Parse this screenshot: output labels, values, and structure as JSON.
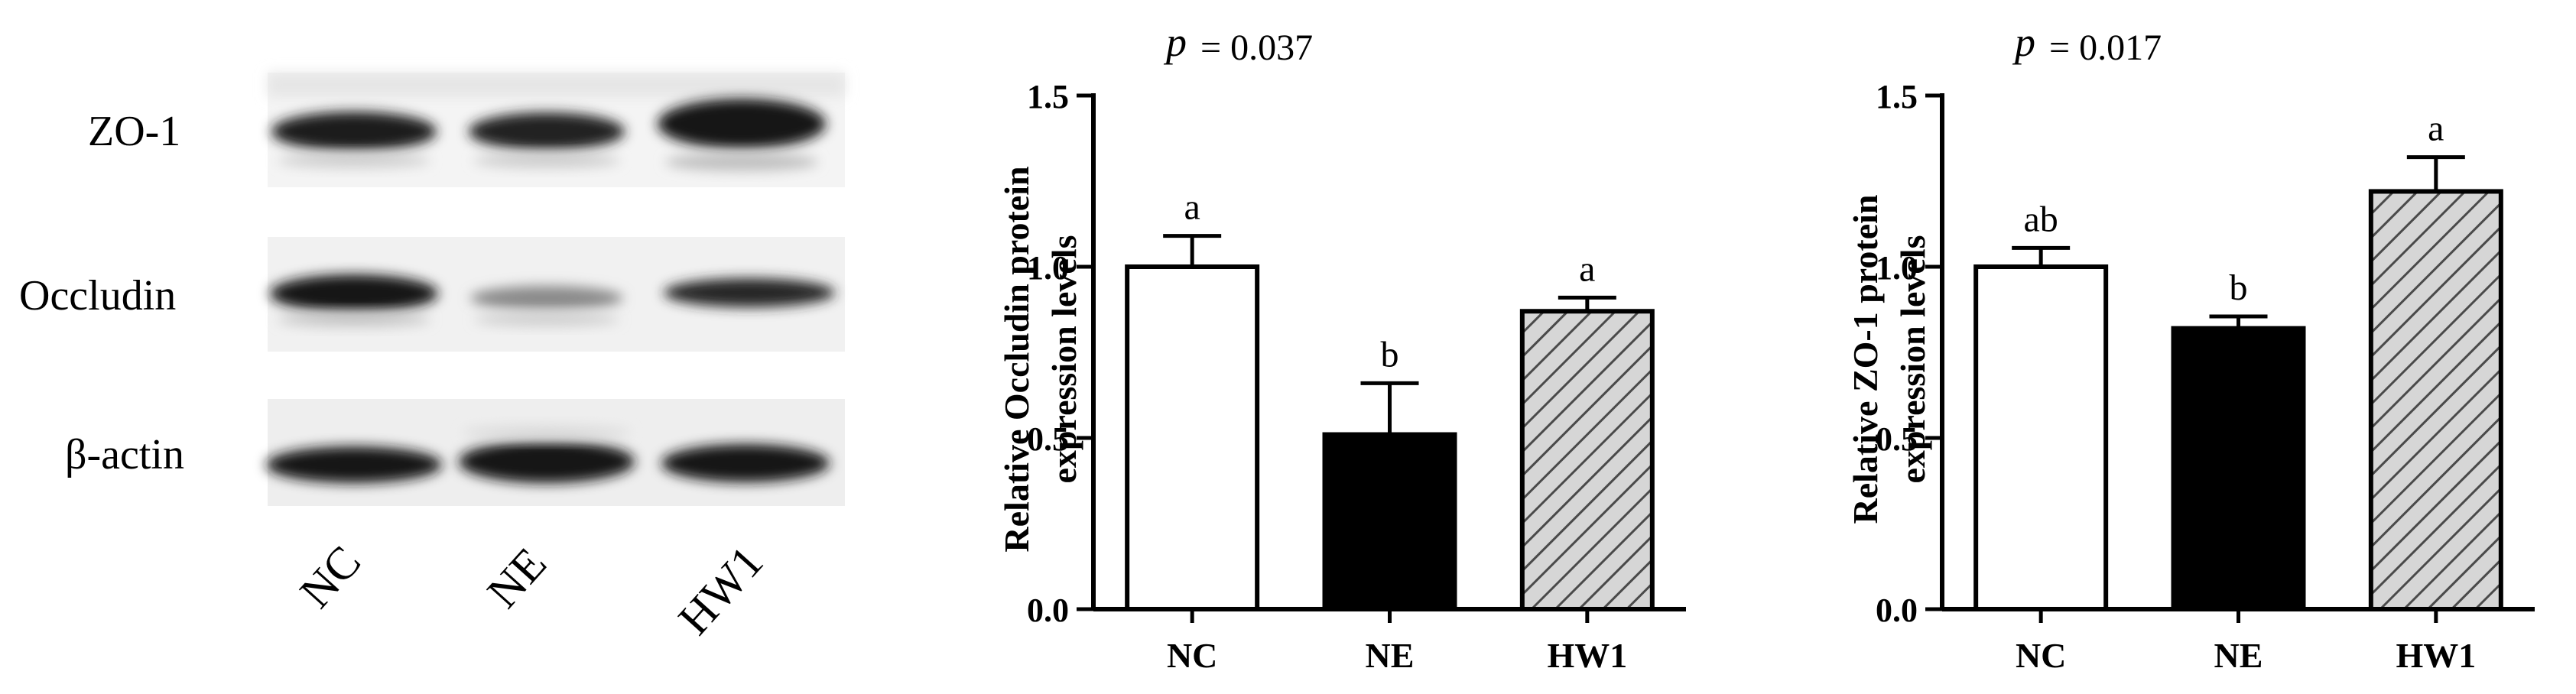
{
  "blot": {
    "rows": [
      "ZO-1",
      "Occludin",
      "β-actin"
    ],
    "lanes": [
      "NC",
      "NE",
      "HW1"
    ]
  },
  "chart_data": [
    {
      "type": "bar",
      "title": "p = 0.037",
      "p_symbol": "p",
      "p_value": "= 0.037",
      "ylabel_lines": [
        "Relative Occludin protein",
        "expression levels"
      ],
      "xlabel": "",
      "categories": [
        "NC",
        "NE",
        "HW1"
      ],
      "values": [
        1.0,
        0.51,
        0.87
      ],
      "errors": [
        0.09,
        0.15,
        0.04
      ],
      "significance": [
        "a",
        "b",
        "a"
      ],
      "fills": [
        "white",
        "black",
        "hatched"
      ],
      "ylim": [
        0,
        1.5
      ],
      "yticks": [
        "0.0",
        "0.5",
        "1.0",
        "1.5"
      ],
      "grid": false
    },
    {
      "type": "bar",
      "title": "p = 0.017",
      "p_symbol": "p",
      "p_value": "= 0.017",
      "ylabel_lines": [
        "Relative ZO-1 protein",
        "expression levels"
      ],
      "xlabel": "",
      "categories": [
        "NC",
        "NE",
        "HW1"
      ],
      "values": [
        1.0,
        0.82,
        1.22
      ],
      "errors": [
        0.055,
        0.035,
        0.1
      ],
      "significance": [
        "ab",
        "b",
        "a"
      ],
      "fills": [
        "white",
        "black",
        "hatched"
      ],
      "ylim": [
        0,
        1.5
      ],
      "yticks": [
        "0.0",
        "0.5",
        "1.0",
        "1.5"
      ],
      "grid": false
    }
  ]
}
